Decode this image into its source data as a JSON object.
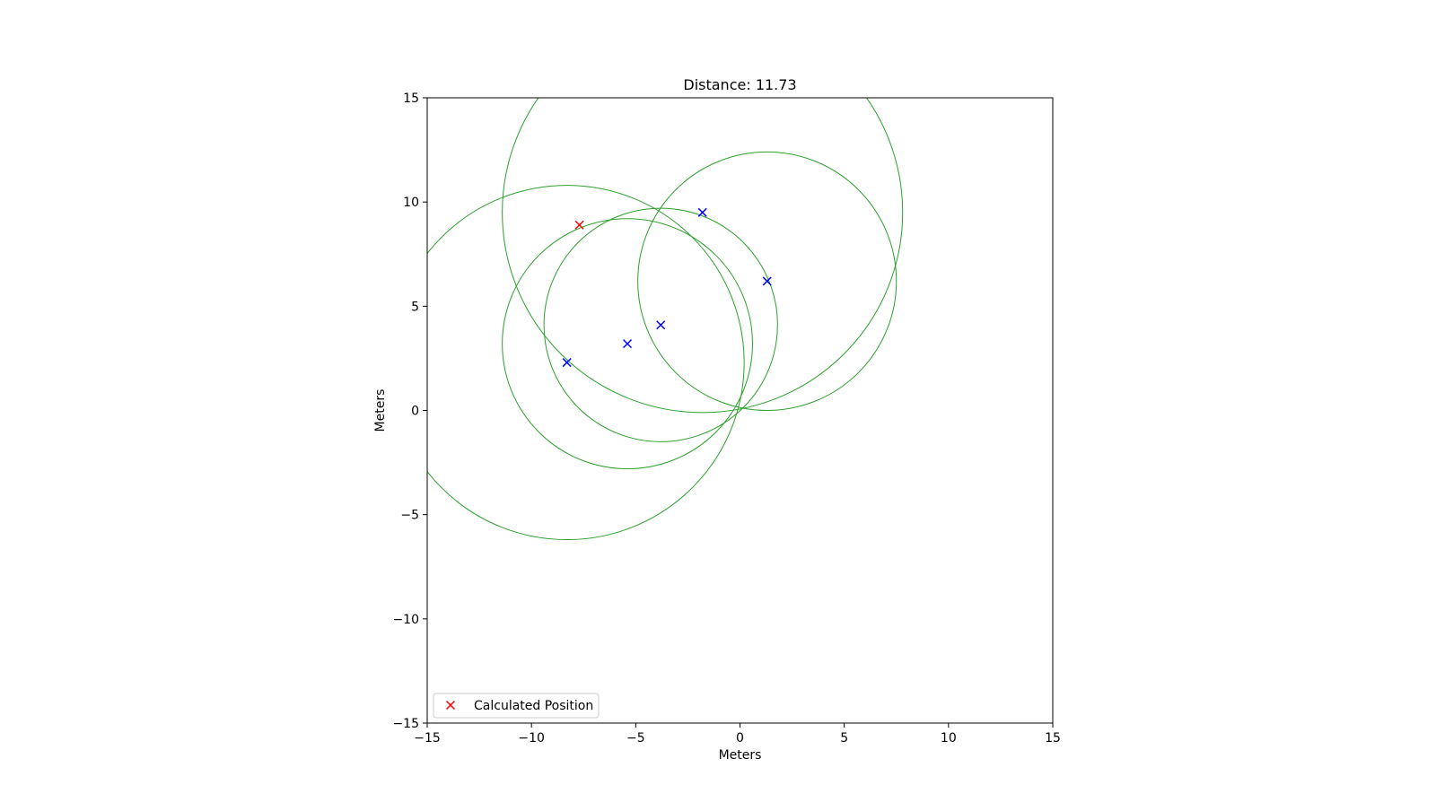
{
  "chart_data": {
    "type": "scatter",
    "title": "Distance: 11.73",
    "xlabel": "Meters",
    "ylabel": "Meters",
    "xlim": [
      -15,
      15
    ],
    "ylim": [
      -15,
      15
    ],
    "xticks": [
      -15,
      -10,
      -5,
      0,
      5,
      10,
      15
    ],
    "yticks": [
      -15,
      -10,
      -5,
      0,
      5,
      10,
      15
    ],
    "tick_labels_x": [
      "−15",
      "−10",
      "−5",
      "0",
      "5",
      "10",
      "15"
    ],
    "tick_labels_y": [
      "−15",
      "−10",
      "−5",
      "0",
      "5",
      "10",
      "15"
    ],
    "grid": false,
    "legend_position": "lower-left",
    "aspect": "equal",
    "anchors": {
      "marker": "x",
      "color": "#0000ff",
      "points": [
        {
          "x": -8.3,
          "y": 2.3
        },
        {
          "x": -5.4,
          "y": 3.2
        },
        {
          "x": -3.8,
          "y": 4.1
        },
        {
          "x": -1.8,
          "y": 9.5
        },
        {
          "x": 1.3,
          "y": 6.2
        }
      ]
    },
    "range_circles": {
      "color": "#2ca02c",
      "circles": [
        {
          "cx": -8.3,
          "cy": 2.3,
          "r": 8.5
        },
        {
          "cx": -5.4,
          "cy": 3.2,
          "r": 6.0
        },
        {
          "cx": -3.8,
          "cy": 4.1,
          "r": 5.6
        },
        {
          "cx": -1.8,
          "cy": 9.5,
          "r": 9.6
        },
        {
          "cx": 1.3,
          "cy": 6.2,
          "r": 6.2
        }
      ]
    },
    "series": [
      {
        "name": "Calculated Position",
        "marker": "x",
        "color": "#ff0000",
        "points": [
          {
            "x": -7.7,
            "y": 8.9
          }
        ]
      }
    ]
  }
}
